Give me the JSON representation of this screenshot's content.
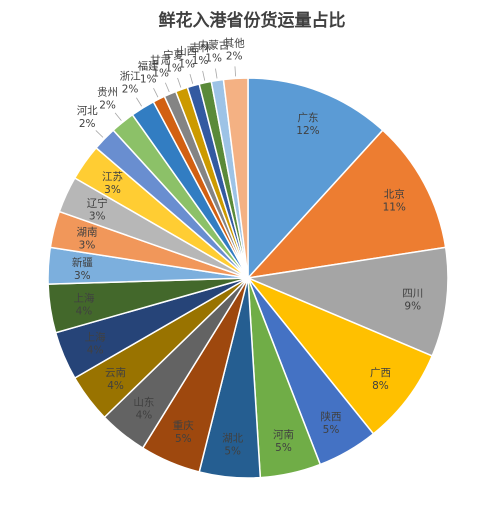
{
  "chart_data": {
    "type": "pie",
    "title": "鲜花入港省份货运量占比",
    "start_angle_deg": 0,
    "direction": "clockwise",
    "slices": [
      {
        "label": "广东",
        "value": 12,
        "display": "12%",
        "color": "#5B9BD5"
      },
      {
        "label": "北京",
        "value": 11,
        "display": "11%",
        "color": "#ED7D31"
      },
      {
        "label": "四川",
        "value": 9,
        "display": "9%",
        "color": "#A5A5A5"
      },
      {
        "label": "广西",
        "value": 8,
        "display": "8%",
        "color": "#FFC000"
      },
      {
        "label": "陕西",
        "value": 5,
        "display": "5%",
        "color": "#4472C4"
      },
      {
        "label": "河南",
        "value": 5,
        "display": "5%",
        "color": "#70AD47"
      },
      {
        "label": "湖北",
        "value": 5,
        "display": "5%",
        "color": "#255E91"
      },
      {
        "label": "重庆",
        "value": 5,
        "display": "5%",
        "color": "#9E480E"
      },
      {
        "label": "山东",
        "value": 4,
        "display": "4%",
        "color": "#636363"
      },
      {
        "label": "云南",
        "value": 4,
        "display": "4%",
        "color": "#997300"
      },
      {
        "label": "上海",
        "value": 4,
        "display": "4%",
        "color": "#264478"
      },
      {
        "label": "上海",
        "value": 4,
        "display": "4%",
        "color": "#43682B"
      },
      {
        "label": "新疆",
        "value": 3,
        "display": "3%",
        "color": "#7CAFDD"
      },
      {
        "label": "湖南",
        "value": 3,
        "display": "3%",
        "color": "#F1975A"
      },
      {
        "label": "辽宁",
        "value": 3,
        "display": "3%",
        "color": "#B7B7B7"
      },
      {
        "label": "江苏",
        "value": 3,
        "display": "3%",
        "color": "#FFCD33"
      },
      {
        "label": "河北",
        "value": 2,
        "display": "2%",
        "color": "#698ED0"
      },
      {
        "label": "贵州",
        "value": 2,
        "display": "2%",
        "color": "#8CC168"
      },
      {
        "label": "浙江",
        "value": 2,
        "display": "2%",
        "color": "#327DC2"
      },
      {
        "label": "福建",
        "value": 1,
        "display": "1%",
        "color": "#D26012"
      },
      {
        "label": "甘肃",
        "value": 1,
        "display": "1%",
        "color": "#848484"
      },
      {
        "label": "宁夏",
        "value": 1,
        "display": "1%",
        "color": "#CC9A00"
      },
      {
        "label": "山西",
        "value": 1,
        "display": "1%",
        "color": "#335AA1"
      },
      {
        "label": "吉林",
        "value": 1,
        "display": "1%",
        "color": "#5A8A39"
      },
      {
        "label": "内蒙古",
        "value": 1,
        "display": "1%",
        "color": "#9DC3E6"
      },
      {
        "label": "其他",
        "value": 2,
        "display": "2%",
        "color": "#F4B183"
      }
    ]
  }
}
